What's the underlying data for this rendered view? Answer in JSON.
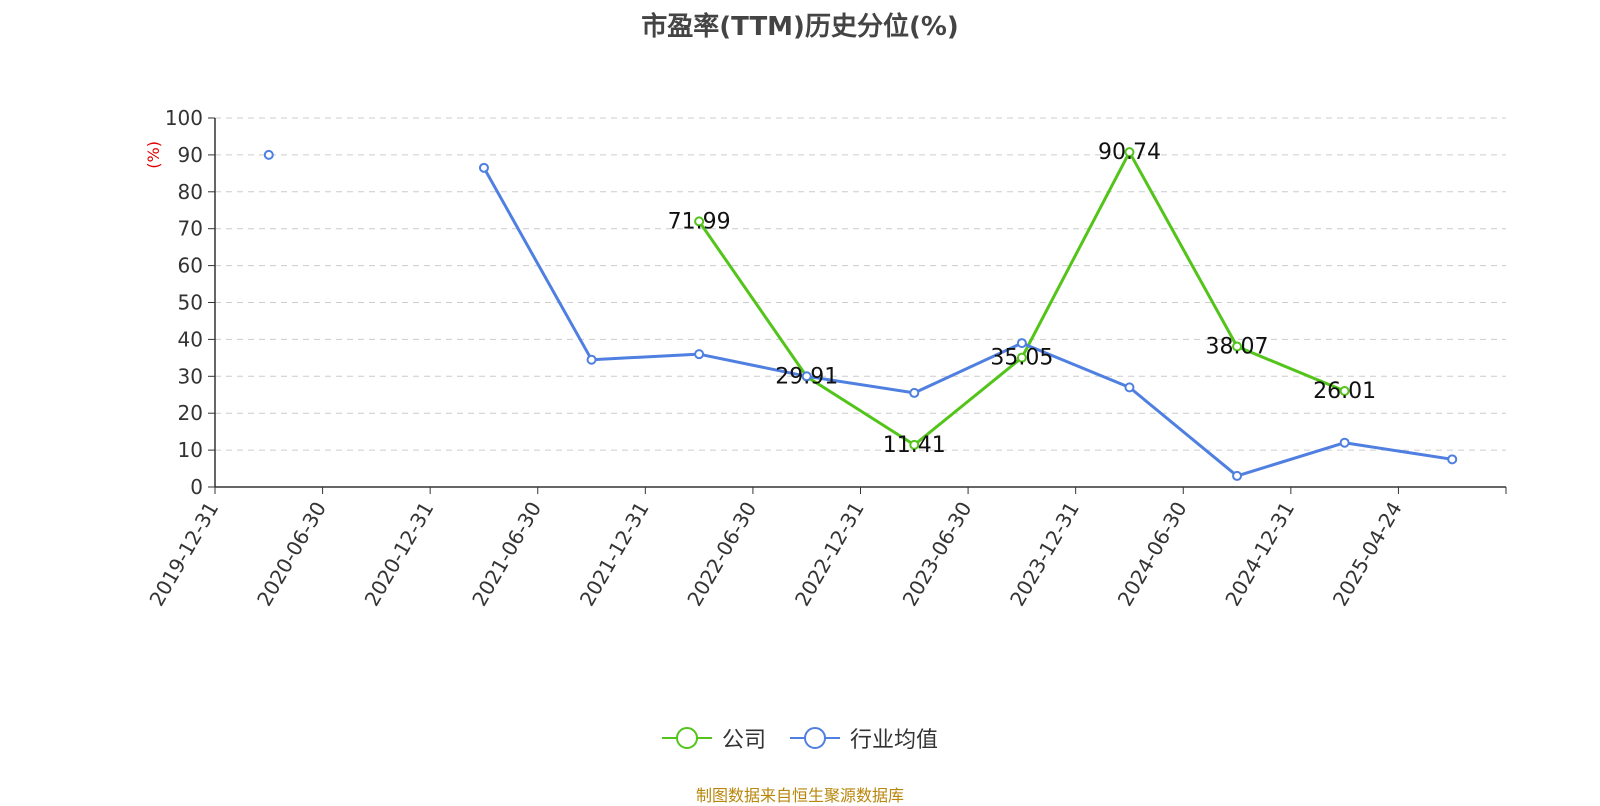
{
  "chart_data": {
    "type": "line",
    "title": "市盈率(TTM)历史分位(%)",
    "ylabel": "(%)",
    "ylim": [
      0,
      100
    ],
    "yticks": [
      0,
      10,
      20,
      30,
      40,
      50,
      60,
      70,
      80,
      90,
      100
    ],
    "categories": [
      "2019-12-31",
      "2020-06-30",
      "2020-12-31",
      "2021-06-30",
      "2021-12-31",
      "2022-06-30",
      "2022-12-31",
      "2023-06-30",
      "2023-12-31",
      "2024-06-30",
      "2024-12-31",
      "2025-04-24"
    ],
    "grid": true,
    "legend_position": "bottom",
    "series": [
      {
        "name": "公司",
        "color": "#52c41a",
        "show_labels": true,
        "values": [
          null,
          null,
          null,
          null,
          71.99,
          29.91,
          11.41,
          35.05,
          90.74,
          38.07,
          26.01,
          null
        ]
      },
      {
        "name": "行业均值",
        "color": "#4f7fe0",
        "show_labels": false,
        "values": [
          90,
          null,
          86.5,
          34.5,
          36,
          30,
          25.5,
          39,
          27,
          3,
          12,
          7.5
        ]
      }
    ]
  },
  "source_note": "制图数据来自恒生聚源数据库"
}
